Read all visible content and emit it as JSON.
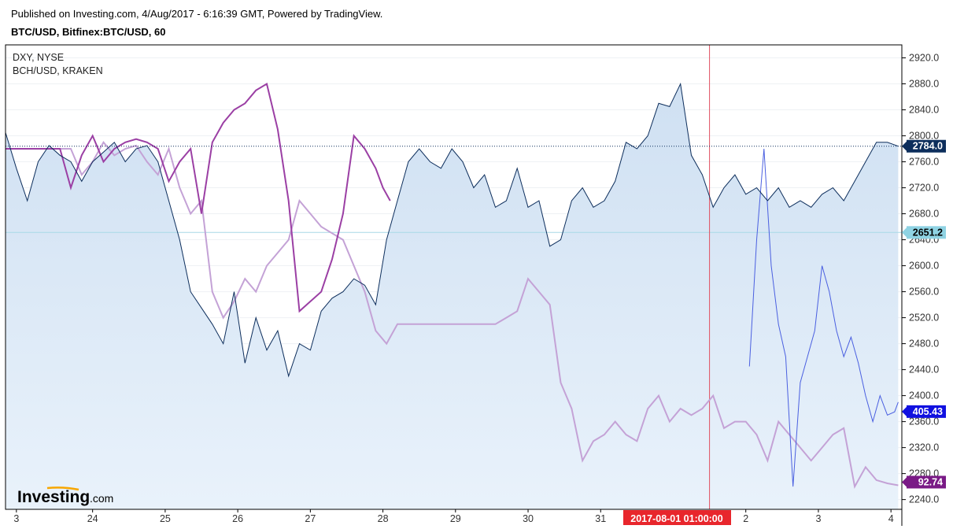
{
  "header": {
    "published": "Published on Investing.com, 4/Aug/2017 - 6:16:39 GMT, Powered by TradingView.",
    "symbol": "BTC/USD, Bitfinex:BTC/USD, 60"
  },
  "logo": {
    "brand": "Investing",
    "suffix": ".com"
  },
  "crosshair_label": "2017-08-01 01:00:00",
  "colors": {
    "btc": "#0d2e5c",
    "btc_fill": "#d6e6f5",
    "dxy": "#4a5fe0",
    "bch_strong": "#9b3fa4",
    "bch_light": "#c4a2d6",
    "crosshair": "#e05060",
    "price_line": "#a8d8e6",
    "badge_btc": "#0d2e5c",
    "badge_price": "#8fd3e3",
    "badge_dxy": "#1010e0",
    "badge_bch": "#7a1a86"
  },
  "chart_data": {
    "type": "line",
    "legend": [
      "DXY, NYSE",
      "BCH/USD, KRAKEN"
    ],
    "x_ticks": [
      "3",
      "24",
      "25",
      "26",
      "27",
      "28",
      "29",
      "30",
      "31",
      "2",
      "3",
      "4"
    ],
    "y_ticks": [
      "2920.0",
      "2880.0",
      "2840.0",
      "2800.0",
      "2760.0",
      "2720.0",
      "2680.0",
      "2640.0",
      "2600.0",
      "2560.0",
      "2520.0",
      "2480.0",
      "2440.0",
      "2400.0",
      "2360.0",
      "2320.0",
      "2280.0",
      "2240.0"
    ],
    "ylim": [
      2225,
      2940
    ],
    "xlim": [
      22.8,
      35.15
    ],
    "badges": {
      "btc_last": "2784.0",
      "crosshair_price": "2651.2",
      "dxy_last": "405.43",
      "bch_last": "92.74"
    },
    "btc_last_value": 2784.0,
    "crosshair_price_value": 2651.2,
    "crosshair_x": 32.5,
    "series": [
      {
        "name": "BTC/USD",
        "x": [
          22.8,
          22.95,
          23.1,
          23.25,
          23.4,
          23.55,
          23.7,
          23.85,
          24.0,
          24.15,
          24.3,
          24.45,
          24.6,
          24.75,
          24.9,
          25.05,
          25.2,
          25.35,
          25.5,
          25.65,
          25.8,
          25.95,
          26.1,
          26.25,
          26.4,
          26.55,
          26.7,
          26.85,
          27.0,
          27.15,
          27.3,
          27.45,
          27.6,
          27.75,
          27.9,
          28.05,
          28.2,
          28.35,
          28.5,
          28.65,
          28.8,
          28.95,
          29.1,
          29.25,
          29.4,
          29.55,
          29.7,
          29.85,
          30.0,
          30.15,
          30.3,
          30.45,
          30.6,
          30.75,
          30.9,
          31.05,
          31.2,
          31.35,
          31.5,
          31.65,
          31.8,
          31.95,
          32.1,
          32.25,
          32.4,
          32.55,
          32.7,
          32.85,
          33.0,
          33.15,
          33.3,
          33.45,
          33.6,
          33.75,
          33.9,
          34.05,
          34.2,
          34.35,
          34.5,
          34.65,
          34.8,
          34.95,
          35.1
        ],
        "values": [
          2805,
          2750,
          2700,
          2760,
          2785,
          2770,
          2760,
          2730,
          2760,
          2775,
          2790,
          2760,
          2780,
          2785,
          2760,
          2700,
          2640,
          2560,
          2535,
          2510,
          2480,
          2560,
          2450,
          2520,
          2470,
          2500,
          2430,
          2480,
          2470,
          2530,
          2550,
          2560,
          2580,
          2570,
          2540,
          2640,
          2700,
          2760,
          2780,
          2760,
          2750,
          2780,
          2760,
          2720,
          2740,
          2690,
          2700,
          2750,
          2690,
          2700,
          2630,
          2640,
          2700,
          2720,
          2690,
          2700,
          2730,
          2790,
          2780,
          2800,
          2850,
          2845,
          2880,
          2770,
          2740,
          2690,
          2720,
          2740,
          2710,
          2720,
          2700,
          2720,
          2690,
          2700,
          2690,
          2710,
          2720,
          2700,
          2730,
          2760,
          2790,
          2790,
          2784
        ]
      },
      {
        "name": "DXY",
        "x": [
          33.05,
          33.15,
          33.25,
          33.35,
          33.45,
          33.55,
          33.65,
          33.75,
          33.85,
          33.95,
          34.05,
          34.15,
          34.25,
          34.35,
          34.45,
          34.55,
          34.65,
          34.75,
          34.85,
          34.95,
          35.05,
          35.1
        ],
        "values": [
          2445,
          2640,
          2780,
          2600,
          2510,
          2460,
          2260,
          2420,
          2460,
          2500,
          2600,
          2560,
          2500,
          2460,
          2490,
          2450,
          2400,
          2360,
          2400,
          2370,
          2375,
          2390
        ]
      },
      {
        "name": "BCH/USD (strong)",
        "x": [
          22.8,
          23.0,
          23.2,
          23.4,
          23.55,
          23.7,
          23.85,
          24.0,
          24.15,
          24.3,
          24.45,
          24.6,
          24.75,
          24.9,
          25.05,
          25.2,
          25.35,
          25.5,
          25.65,
          25.8,
          25.95,
          26.1,
          26.25,
          26.4,
          26.55,
          26.7,
          26.85,
          27.0,
          27.15,
          27.3,
          27.45,
          27.6,
          27.75,
          27.9,
          28.0,
          28.1
        ],
        "values": [
          2780,
          2780,
          2780,
          2780,
          2780,
          2720,
          2770,
          2800,
          2760,
          2780,
          2790,
          2795,
          2790,
          2780,
          2730,
          2760,
          2780,
          2680,
          2790,
          2820,
          2840,
          2850,
          2870,
          2880,
          2810,
          2700,
          2530,
          2545,
          2560,
          2610,
          2680,
          2800,
          2780,
          2750,
          2720,
          2700
        ]
      },
      {
        "name": "BCH/USD (light)",
        "x": [
          22.8,
          23.0,
          23.2,
          23.4,
          23.55,
          23.7,
          23.85,
          24.0,
          24.15,
          24.3,
          24.45,
          24.6,
          24.75,
          24.9,
          25.05,
          25.2,
          25.35,
          25.5,
          25.65,
          25.8,
          25.95,
          26.1,
          26.25,
          26.4,
          26.55,
          26.7,
          26.85,
          27.0,
          27.15,
          27.3,
          27.45,
          27.6,
          27.75,
          27.9,
          28.05,
          28.2,
          28.35,
          28.5,
          28.65,
          28.8,
          28.95,
          29.1,
          29.25,
          29.4,
          29.55,
          29.7,
          29.85,
          30.0,
          30.15,
          30.3,
          30.45,
          30.6,
          30.75,
          30.9,
          31.05,
          31.2,
          31.35,
          31.5,
          31.65,
          31.8,
          31.95,
          32.1,
          32.25,
          32.4,
          32.55,
          32.7,
          32.85,
          33.0,
          33.15,
          33.3,
          33.45,
          33.6,
          33.75,
          33.9,
          34.05,
          34.2,
          34.35,
          34.5,
          34.65,
          34.8,
          34.95,
          35.1
        ],
        "values": [
          2780,
          2780,
          2780,
          2780,
          2780,
          2780,
          2740,
          2760,
          2790,
          2770,
          2780,
          2785,
          2760,
          2740,
          2780,
          2720,
          2680,
          2700,
          2560,
          2520,
          2545,
          2580,
          2560,
          2600,
          2620,
          2640,
          2700,
          2680,
          2660,
          2650,
          2640,
          2600,
          2560,
          2500,
          2480,
          2510,
          2510,
          2510,
          2510,
          2510,
          2510,
          2510,
          2510,
          2510,
          2510,
          2520,
          2530,
          2580,
          2560,
          2540,
          2420,
          2380,
          2300,
          2330,
          2340,
          2360,
          2340,
          2330,
          2380,
          2400,
          2360,
          2380,
          2370,
          2380,
          2400,
          2350,
          2360,
          2360,
          2340,
          2300,
          2360,
          2340,
          2320,
          2300,
          2320,
          2340,
          2350,
          2260,
          2290,
          2270,
          2265,
          2262
        ]
      }
    ]
  }
}
